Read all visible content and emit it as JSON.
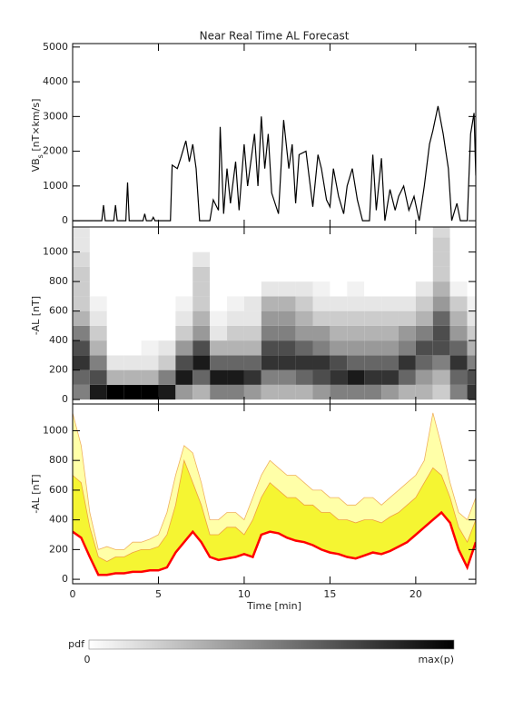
{
  "title": "Near Real Time AL Forecast",
  "colormap": [
    "#ffffff",
    "#000000"
  ],
  "chart_data": [
    {
      "type": "line",
      "ylabel": [
        "VB",
        "s",
        " [nT×km/s]"
      ],
      "color": "#000000",
      "xlim": [
        0,
        23.5
      ],
      "xticks": [
        0,
        5,
        10,
        15,
        20
      ],
      "ylim": [
        -180,
        5100
      ],
      "yticks": [
        0,
        1000,
        2000,
        3000,
        4000,
        5000
      ],
      "x": [
        0,
        1.7,
        1.8,
        1.9,
        2.4,
        2.5,
        2.6,
        3.1,
        3.2,
        3.3,
        4.1,
        4.2,
        4.3,
        4.6,
        4.7,
        4.8,
        5.7,
        5.8,
        6.1,
        6.3,
        6.6,
        6.8,
        7.0,
        7.2,
        7.4,
        8.0,
        8.2,
        8.5,
        8.6,
        8.8,
        9.0,
        9.2,
        9.5,
        9.7,
        10.0,
        10.2,
        10.6,
        10.8,
        11.0,
        11.2,
        11.4,
        11.6,
        12.0,
        12.3,
        12.6,
        12.8,
        13.0,
        13.2,
        13.6,
        14.0,
        14.3,
        14.5,
        14.8,
        15.0,
        15.2,
        15.5,
        15.8,
        16.0,
        16.3,
        16.6,
        16.9,
        17.3,
        17.5,
        17.7,
        18.0,
        18.2,
        18.5,
        18.8,
        19.0,
        19.3,
        19.6,
        19.9,
        20.2,
        20.5,
        20.8,
        21.0,
        21.3,
        21.6,
        21.9,
        22.1,
        22.4,
        22.6,
        23.0,
        23.2,
        23.4,
        23.5
      ],
      "values": [
        0,
        0,
        450,
        0,
        0,
        450,
        0,
        0,
        1100,
        0,
        0,
        200,
        0,
        0,
        100,
        0,
        0,
        1600,
        1500,
        1800,
        2300,
        1700,
        2200,
        1500,
        0,
        0,
        600,
        300,
        2700,
        200,
        1500,
        500,
        1700,
        300,
        2200,
        1000,
        2500,
        1000,
        3000,
        1500,
        2500,
        800,
        200,
        2900,
        1500,
        2200,
        500,
        1900,
        2000,
        400,
        1900,
        1500,
        600,
        400,
        1500,
        700,
        200,
        1000,
        1500,
        600,
        0,
        0,
        1900,
        300,
        1800,
        0,
        900,
        300,
        700,
        1000,
        300,
        700,
        0,
        1000,
        2200,
        2600,
        3300,
        2500,
        1500,
        0,
        500,
        0,
        0,
        2500,
        3100,
        1300
      ]
    },
    {
      "type": "heatmap",
      "ylabel": "-AL [nT]",
      "xlim": [
        0,
        23.5
      ],
      "xticks": [
        0,
        5,
        10,
        15,
        20
      ],
      "ylim": [
        -30,
        1170
      ],
      "yticks": [
        0,
        200,
        400,
        600,
        800,
        1000
      ],
      "x_bins": [
        0,
        1,
        2,
        3,
        4,
        5,
        6,
        7,
        8,
        9,
        10,
        11,
        12,
        13,
        14,
        15,
        16,
        17,
        18,
        19,
        20,
        21,
        22,
        23,
        23.5
      ],
      "y_bins": [
        0,
        100,
        200,
        300,
        400,
        500,
        600,
        700,
        800,
        900,
        1000,
        1100,
        1200
      ],
      "z": [
        [
          0.5,
          0.9,
          1,
          1,
          1,
          0.9,
          0.4,
          0.3,
          0.5,
          0.5,
          0.4,
          0.3,
          0.3,
          0.3,
          0.4,
          0.5,
          0.5,
          0.5,
          0.4,
          0.3,
          0.3,
          0.2,
          0.5,
          0.8
        ],
        [
          0.6,
          0.7,
          0.3,
          0.3,
          0.3,
          0.5,
          0.9,
          0.6,
          0.9,
          0.9,
          0.8,
          0.5,
          0.5,
          0.6,
          0.7,
          0.8,
          0.9,
          0.8,
          0.8,
          0.6,
          0.4,
          0.3,
          0.6,
          0.7
        ],
        [
          0.8,
          0.5,
          0.1,
          0.1,
          0.1,
          0.2,
          0.7,
          0.9,
          0.6,
          0.6,
          0.6,
          0.8,
          0.8,
          0.8,
          0.8,
          0.7,
          0.6,
          0.6,
          0.6,
          0.8,
          0.6,
          0.5,
          0.8,
          0.5
        ],
        [
          0.7,
          0.3,
          0,
          0,
          0.05,
          0.1,
          0.4,
          0.7,
          0.3,
          0.3,
          0.3,
          0.7,
          0.7,
          0.6,
          0.5,
          0.4,
          0.4,
          0.4,
          0.4,
          0.5,
          0.7,
          0.7,
          0.6,
          0.3
        ],
        [
          0.5,
          0.2,
          0,
          0,
          0,
          0,
          0.2,
          0.4,
          0.1,
          0.2,
          0.2,
          0.5,
          0.5,
          0.4,
          0.4,
          0.3,
          0.3,
          0.3,
          0.3,
          0.4,
          0.5,
          0.7,
          0.4,
          0.2
        ],
        [
          0.3,
          0.1,
          0,
          0,
          0,
          0,
          0.1,
          0.3,
          0.05,
          0.1,
          0.1,
          0.4,
          0.4,
          0.3,
          0.2,
          0.2,
          0.2,
          0.2,
          0.2,
          0.2,
          0.3,
          0.6,
          0.3,
          0.1
        ],
        [
          0.2,
          0.05,
          0,
          0,
          0,
          0,
          0.05,
          0.2,
          0,
          0.05,
          0.1,
          0.3,
          0.3,
          0.2,
          0.1,
          0.1,
          0.1,
          0.1,
          0.1,
          0.1,
          0.2,
          0.4,
          0.2,
          0.05
        ],
        [
          0.2,
          0,
          0,
          0,
          0,
          0,
          0,
          0.2,
          0,
          0,
          0,
          0.1,
          0.1,
          0.1,
          0.05,
          0,
          0.05,
          0,
          0,
          0,
          0.1,
          0.3,
          0.05,
          0
        ],
        [
          0.2,
          0,
          0,
          0,
          0,
          0,
          0,
          0.2,
          0,
          0,
          0,
          0,
          0,
          0,
          0,
          0,
          0,
          0,
          0,
          0,
          0,
          0.2,
          0,
          0
        ],
        [
          0.15,
          0,
          0,
          0,
          0,
          0,
          0,
          0.1,
          0,
          0,
          0,
          0,
          0,
          0,
          0,
          0,
          0,
          0,
          0,
          0,
          0,
          0.2,
          0,
          0
        ],
        [
          0.1,
          0,
          0,
          0,
          0,
          0,
          0,
          0,
          0,
          0,
          0,
          0,
          0,
          0,
          0,
          0,
          0,
          0,
          0,
          0,
          0,
          0.2,
          0,
          0
        ],
        [
          0.1,
          0,
          0,
          0,
          0,
          0,
          0,
          0,
          0,
          0,
          0,
          0,
          0,
          0,
          0,
          0,
          0,
          0,
          0,
          0,
          0,
          0.15,
          0,
          0
        ]
      ]
    },
    {
      "type": "area",
      "ylabel": "-AL [nT]",
      "xlabel": "Time [min]",
      "xlim": [
        0,
        23.5
      ],
      "xticks": [
        0,
        5,
        10,
        15,
        20
      ],
      "ylim": [
        -30,
        1180
      ],
      "yticks": [
        0,
        200,
        400,
        600,
        800,
        1000
      ],
      "x": [
        0,
        0.5,
        1,
        1.5,
        2,
        2.5,
        3,
        3.5,
        4,
        4.5,
        5,
        5.5,
        6,
        6.5,
        7,
        7.5,
        8,
        8.5,
        9,
        9.5,
        10,
        10.5,
        11,
        11.5,
        12,
        12.5,
        13,
        13.5,
        14,
        14.5,
        15,
        15.5,
        16,
        16.5,
        17,
        17.5,
        18,
        18.5,
        19,
        19.5,
        20,
        20.5,
        21,
        21.5,
        22,
        22.5,
        23,
        23.5
      ],
      "series": [
        {
          "fill": "#ffffa8",
          "color": "#f0b060",
          "values": [
            1120,
            900,
            450,
            200,
            220,
            200,
            200,
            250,
            250,
            270,
            300,
            450,
            700,
            900,
            850,
            650,
            400,
            400,
            450,
            450,
            400,
            550,
            700,
            800,
            750,
            700,
            700,
            650,
            600,
            600,
            550,
            550,
            500,
            500,
            550,
            550,
            500,
            550,
            600,
            650,
            700,
            800,
            1120,
            900,
            650,
            450,
            400,
            550
          ]
        },
        {
          "fill": "#f5f532",
          "color": "#f0a040",
          "values": [
            700,
            650,
            350,
            150,
            120,
            150,
            150,
            180,
            200,
            200,
            220,
            300,
            500,
            800,
            650,
            500,
            300,
            300,
            350,
            350,
            300,
            400,
            550,
            650,
            600,
            550,
            550,
            500,
            500,
            450,
            450,
            400,
            400,
            380,
            400,
            400,
            380,
            420,
            450,
            500,
            550,
            650,
            750,
            700,
            550,
            350,
            250,
            400
          ]
        },
        {
          "color": "#ff0000",
          "values": [
            320,
            280,
            150,
            30,
            30,
            40,
            40,
            50,
            50,
            60,
            60,
            80,
            180,
            250,
            320,
            250,
            150,
            130,
            140,
            150,
            170,
            150,
            300,
            320,
            310,
            280,
            260,
            250,
            230,
            200,
            180,
            170,
            150,
            140,
            160,
            180,
            170,
            190,
            220,
            250,
            300,
            350,
            400,
            450,
            380,
            200,
            80,
            250
          ]
        }
      ]
    }
  ],
  "colorbar": {
    "label": "pdf",
    "min_label": "0",
    "max_label": "max(p)"
  }
}
